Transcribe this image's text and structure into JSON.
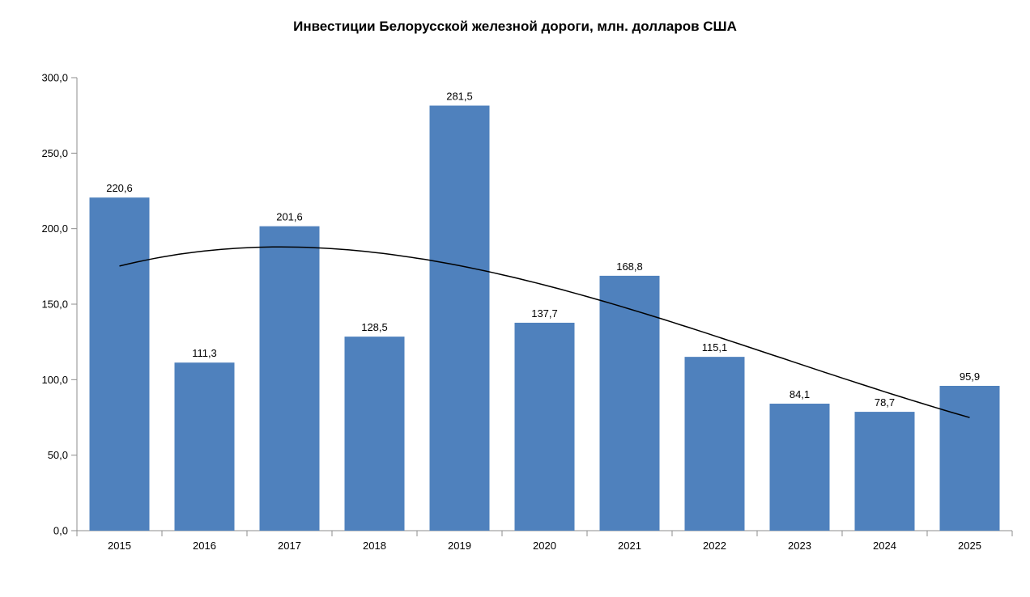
{
  "chart_data": {
    "type": "bar",
    "title": "Инвестиции Белорусской железной дороги, млн. долларов США",
    "xlabel": "",
    "ylabel": "",
    "categories": [
      "2015",
      "2016",
      "2017",
      "2018",
      "2019",
      "2020",
      "2021",
      "2022",
      "2023",
      "2024",
      "2025"
    ],
    "values": [
      220.6,
      111.3,
      201.6,
      128.5,
      281.5,
      137.7,
      168.8,
      115.1,
      84.1,
      78.7,
      95.9
    ],
    "value_labels": [
      "220,6",
      "111,3",
      "201,6",
      "128,5",
      "281,5",
      "137,7",
      "168,8",
      "115,1",
      "84,1",
      "78,7",
      "95,9"
    ],
    "ylim": [
      0,
      300
    ],
    "y_tick_values": [
      0,
      50,
      100,
      150,
      200,
      250,
      300
    ],
    "y_tick_labels": [
      "0,0",
      "50,0",
      "100,0",
      "150,0",
      "200,0",
      "250,0",
      "300,0"
    ],
    "grid": false,
    "legend": "none",
    "bar_color": "#4F81BD",
    "axis_color": "#8C8C8C",
    "text_color": "#000000",
    "trendline": {
      "type": "polynomial",
      "order": 3,
      "color": "#000000"
    }
  }
}
